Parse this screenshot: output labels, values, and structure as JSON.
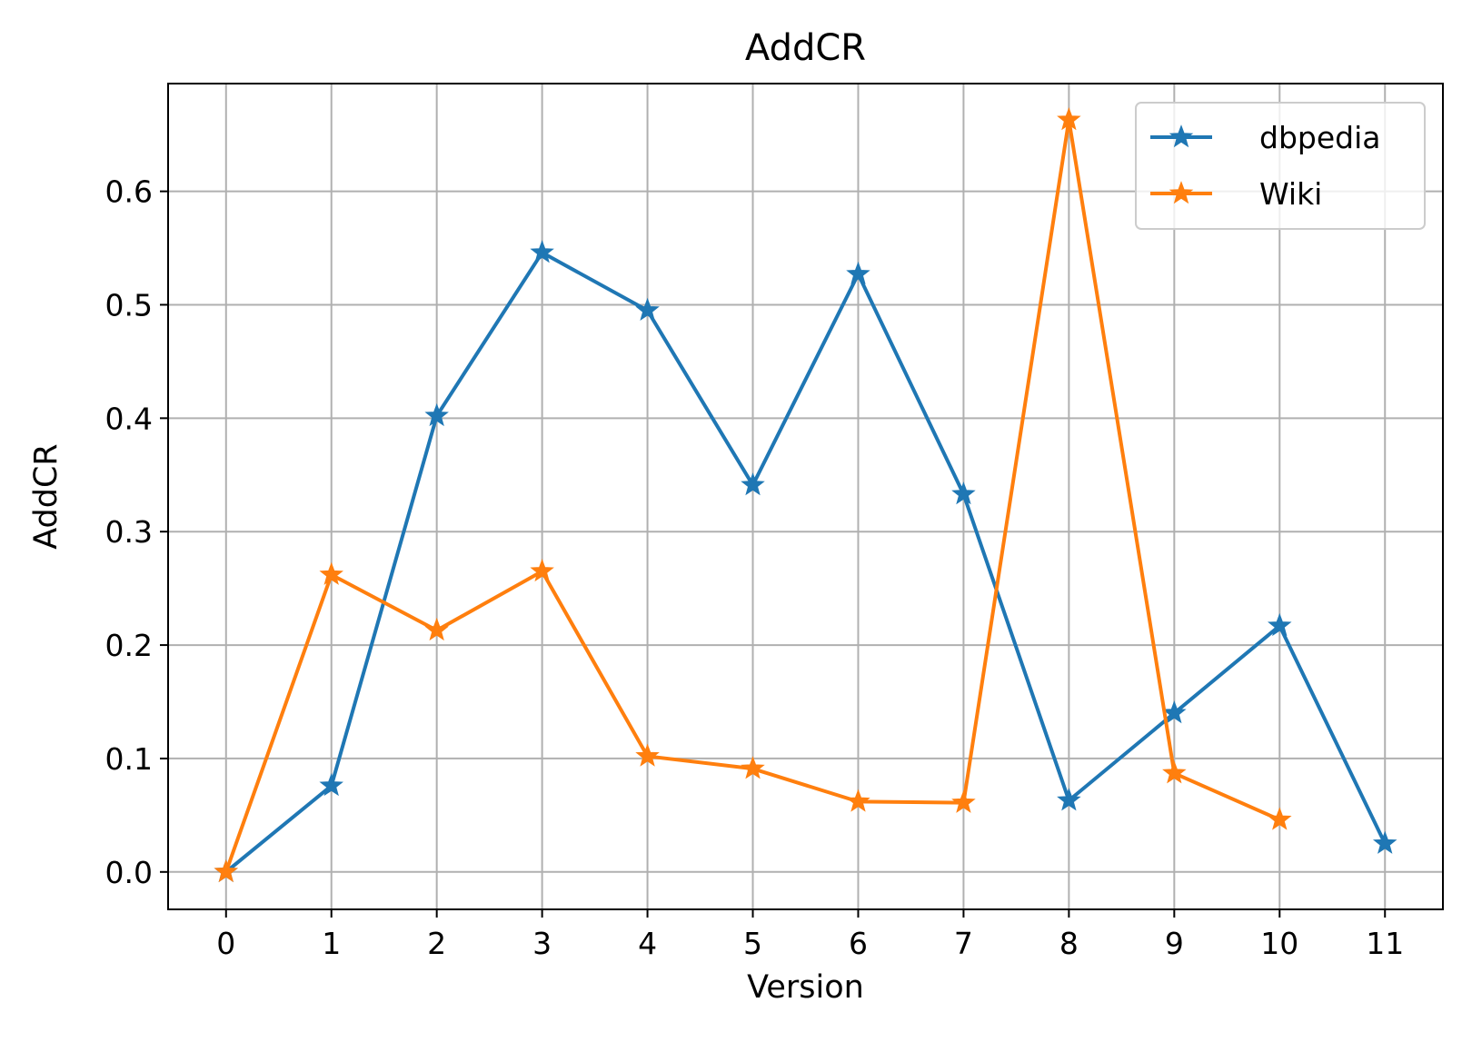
{
  "chart_data": {
    "type": "line",
    "title": "AddCR",
    "xlabel": "Version",
    "ylabel": "AddCR",
    "x": [
      0,
      1,
      2,
      3,
      4,
      5,
      6,
      7,
      8,
      9,
      10,
      11
    ],
    "xlim": [
      -0.55,
      11.55
    ],
    "ylim": [
      -0.033,
      0.695
    ],
    "yticks": [
      0.0,
      0.1,
      0.2,
      0.3,
      0.4,
      0.5,
      0.6
    ],
    "ytick_labels": [
      "0.0",
      "0.1",
      "0.2",
      "0.3",
      "0.4",
      "0.5",
      "0.6"
    ],
    "xtick_labels": [
      "0",
      "1",
      "2",
      "3",
      "4",
      "5",
      "6",
      "7",
      "8",
      "9",
      "10",
      "11"
    ],
    "grid": true,
    "legend_position": "top-right",
    "marker": "star",
    "series": [
      {
        "name": "dbpedia",
        "color": "#1f77b4",
        "x": [
          0,
          1,
          2,
          3,
          4,
          5,
          6,
          7,
          8,
          9,
          10,
          11
        ],
        "values": [
          0.0,
          0.076,
          0.402,
          0.546,
          0.495,
          0.341,
          0.527,
          0.333,
          0.063,
          0.14,
          0.217,
          0.025
        ]
      },
      {
        "name": "Wiki",
        "color": "#ff7f0e",
        "x": [
          0,
          1,
          2,
          3,
          4,
          5,
          6,
          7,
          8,
          9,
          10
        ],
        "values": [
          0.0,
          0.262,
          0.213,
          0.265,
          0.102,
          0.091,
          0.062,
          0.061,
          0.663,
          0.087,
          0.046
        ]
      }
    ]
  }
}
